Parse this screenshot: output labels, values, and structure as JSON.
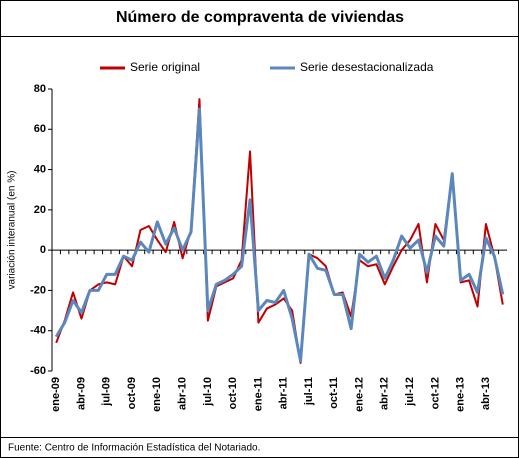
{
  "chart_data": {
    "type": "line",
    "title": "Número de compraventa de viviendas",
    "y_label": "variación interanual (en %)",
    "source": "Fuente: Centro de Información Estadística del Notariado.",
    "categories": [
      "ene-09",
      null,
      null,
      "abr-09",
      null,
      null,
      "jul-09",
      null,
      null,
      "oct-09",
      null,
      null,
      "ene-10",
      null,
      null,
      "abr-10",
      null,
      null,
      "jul-10",
      null,
      null,
      "oct-10",
      null,
      null,
      "ene-11",
      null,
      null,
      "abr-11",
      null,
      null,
      "jul-11",
      null,
      null,
      "oct-11",
      null,
      null,
      "ene-12",
      null,
      null,
      "abr-12",
      null,
      null,
      "jul-12",
      null,
      null,
      "oct-12",
      null,
      null,
      "ene-13",
      null,
      null,
      "abr-13",
      null,
      null
    ],
    "series": [
      {
        "name": "Serie original",
        "color": "#c00000",
        "values": [
          -46,
          -35,
          -21,
          -34,
          -20,
          -17,
          -16,
          -17,
          -3,
          -8,
          10,
          12,
          5,
          -1,
          14,
          -4,
          10,
          75,
          -35,
          -18,
          -16,
          -14,
          -5,
          49,
          -36,
          -29,
          -27,
          -24,
          -30,
          -56,
          -2,
          -4,
          -8,
          -22,
          -21,
          -33,
          -5,
          -8,
          -7,
          -17,
          -8,
          0,
          5,
          13,
          -16,
          13,
          5,
          38,
          -16,
          -15,
          -28,
          13,
          -3,
          -27
        ]
      },
      {
        "name": "Serie desestacionalizada",
        "color": "#5b87bd",
        "values": [
          -43,
          -36,
          -25,
          -31,
          -20,
          -20,
          -12,
          -12,
          -3,
          -5,
          4,
          -1,
          14,
          3,
          11,
          0,
          9,
          70,
          -30,
          -17,
          -15,
          -12,
          -8,
          25,
          -30,
          -25,
          -26,
          -20,
          -34,
          -55,
          -2,
          -9,
          -10,
          -22,
          -22,
          -39,
          -2,
          -6,
          -3,
          -14,
          -5,
          7,
          1,
          5,
          -11,
          7,
          2,
          38,
          -15,
          -12,
          -21,
          6,
          -3,
          -22
        ]
      }
    ],
    "ylim": [
      -60,
      80
    ],
    "yticks": [
      -60,
      -40,
      -20,
      0,
      20,
      40,
      60,
      80
    ],
    "grid": false,
    "legend": "top"
  }
}
